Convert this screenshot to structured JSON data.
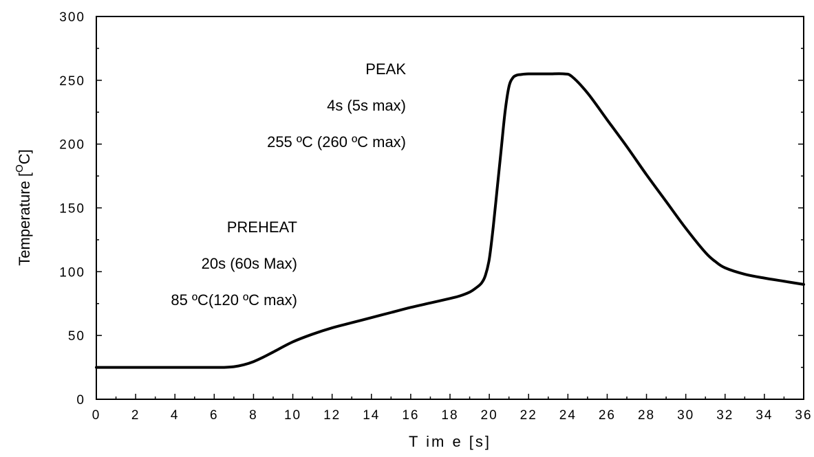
{
  "chart_data": {
    "type": "line",
    "title": "",
    "xlabel": "T im e [s]",
    "ylabel_main": "Temperature [",
    "ylabel_sup": "O",
    "ylabel_tail": "C]",
    "xlim": [
      0,
      36
    ],
    "ylim": [
      0,
      300
    ],
    "x_ticks": [
      0,
      2,
      4,
      6,
      8,
      10,
      12,
      14,
      16,
      18,
      20,
      22,
      24,
      26,
      28,
      30,
      32,
      34,
      36
    ],
    "x_tick_labels": [
      "0",
      "2",
      "4",
      "6",
      "8",
      "10",
      "12",
      "14",
      "16",
      "18",
      "20",
      "22",
      "24",
      "26",
      "28",
      "30",
      "32",
      "34",
      "36"
    ],
    "y_ticks": [
      0,
      50,
      100,
      150,
      200,
      250,
      300
    ],
    "y_tick_labels": [
      "0",
      "50",
      "100",
      "150",
      "200",
      "250",
      "300"
    ],
    "grid": false,
    "line_color": "#000000",
    "series": [
      {
        "x": [
          0,
          2,
          4,
          6,
          6.5,
          7,
          7.5,
          8,
          8.5,
          9,
          10,
          11,
          12,
          13,
          14,
          15,
          16,
          17,
          18,
          18.5,
          19,
          19.3,
          19.6,
          19.8,
          20,
          20.2,
          20.4,
          20.6,
          20.8,
          21,
          21.2,
          21.4,
          21.6,
          22,
          23,
          23.8,
          24.2,
          25,
          26,
          27,
          28,
          29,
          30,
          31,
          31.5,
          32,
          33,
          34,
          35,
          36
        ],
        "y": [
          25,
          25,
          25,
          25,
          25,
          25.5,
          27,
          29.5,
          33,
          37,
          45,
          51,
          56,
          60,
          64,
          68,
          72,
          75.5,
          79,
          81,
          84,
          87,
          91,
          97,
          110,
          135,
          165,
          195,
          225,
          245,
          252,
          254,
          254.5,
          255,
          255,
          255,
          253,
          240,
          219,
          198,
          176,
          155,
          134,
          115,
          108,
          103,
          98,
          95,
          92.5,
          90
        ]
      }
    ],
    "annotations": {
      "peak": [
        "PEAK",
        "4s (5s max)",
        "255 ºC (260 ºC max)"
      ],
      "preheat": [
        "PREHEAT",
        "20s (60s Max)",
        "85 ºC(120 ºC max)"
      ]
    }
  }
}
